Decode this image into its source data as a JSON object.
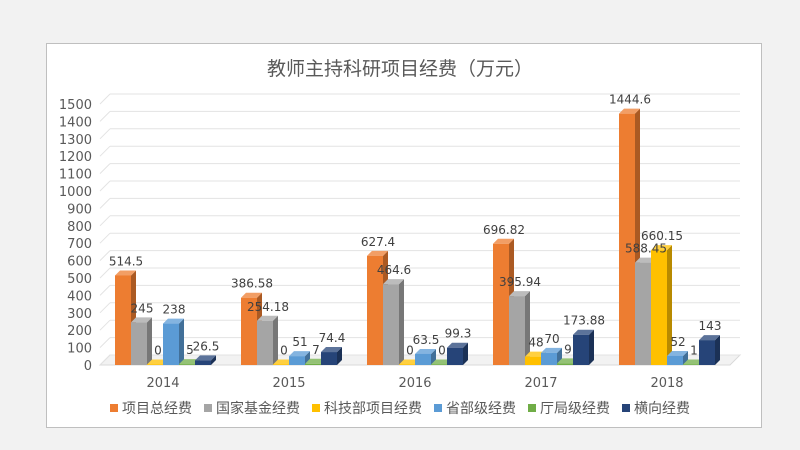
{
  "chart_data": {
    "type": "bar",
    "title": "教师主持科研项目经费（万元）",
    "xlabel": "",
    "ylabel": "",
    "ylim": [
      0,
      1500
    ],
    "yticks": [
      0,
      100,
      200,
      300,
      400,
      500,
      600,
      700,
      800,
      900,
      1000,
      1100,
      1200,
      1300,
      1400,
      1500
    ],
    "grid": true,
    "legend_position": "bottom",
    "style": "3d-column",
    "categories": [
      "2014",
      "2015",
      "2016",
      "2017",
      "2018"
    ],
    "series": [
      {
        "name": "项目总经费",
        "color": "#ed7d31",
        "values": [
          514.5,
          386.58,
          627.4,
          696.82,
          1444.6
        ],
        "labels": [
          "514.5",
          "386.58",
          "627.4",
          "696.82",
          "1444.6"
        ]
      },
      {
        "name": "国家基金经费",
        "color": "#a5a5a5",
        "values": [
          245,
          254.18,
          464.6,
          395.94,
          588.45
        ],
        "labels": [
          "245",
          "254.18",
          "464.6",
          "395.94",
          "588.45"
        ]
      },
      {
        "name": "科技部项目经费",
        "color": "#ffc000",
        "values": [
          0,
          0,
          0,
          48,
          660.15
        ],
        "labels": [
          "0",
          "0",
          "0",
          "48",
          "660.15"
        ]
      },
      {
        "name": "省部级经费",
        "color": "#5b9bd5",
        "values": [
          238,
          51,
          63.5,
          70,
          52
        ],
        "labels": [
          "238",
          "51",
          "63.5",
          "70",
          "52"
        ]
      },
      {
        "name": "厅局级经费",
        "color": "#70ad47",
        "values": [
          5,
          7,
          0,
          9,
          1
        ],
        "labels": [
          "5",
          "7",
          "0",
          "9",
          "1"
        ]
      },
      {
        "name": "横向经费",
        "color": "#264478",
        "values": [
          26.5,
          74.4,
          99.3,
          173.88,
          143
        ],
        "labels": [
          "26.5",
          "74.4",
          "99.3",
          "173.88",
          "143"
        ]
      }
    ]
  }
}
